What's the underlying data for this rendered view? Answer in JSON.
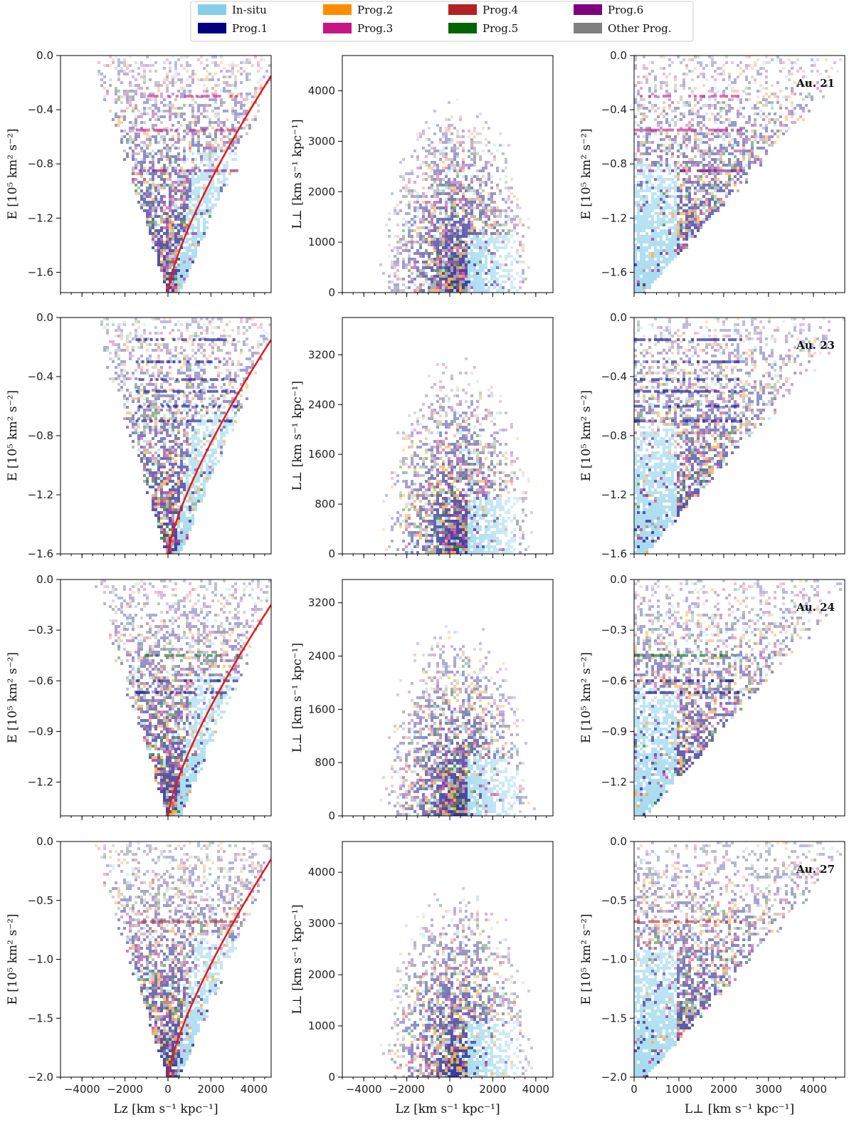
{
  "legend": {
    "entries": [
      {
        "label": "In-situ",
        "color": "#87ceeb"
      },
      {
        "label": "Prog.1",
        "color": "#000080"
      },
      {
        "label": "Prog.2",
        "color": "#ff8c00"
      },
      {
        "label": "Prog.3",
        "color": "#c71585"
      },
      {
        "label": "Prog.4",
        "color": "#b22222"
      },
      {
        "label": "Prog.5",
        "color": "#006400"
      },
      {
        "label": "Prog.6",
        "color": "#800080"
      },
      {
        "label": "Other Prog.",
        "color": "#808080"
      }
    ]
  },
  "axis_labels": {
    "energy": "E [10⁵ km² s⁻²]",
    "lperp": "L⊥ [km s⁻¹ kpc⁻¹]",
    "lz": "Lz [km s⁻¹ kpc⁻¹]"
  },
  "chart_data": {
    "type": "heatmap",
    "title": "",
    "description_series": "2D histograms of halo stars colored by progenitor",
    "halos": [
      {
        "name": "Au. 21",
        "panels": [
          {
            "x": "Lz",
            "y": "E",
            "xlim": [
              -5000,
              4800
            ],
            "ylim": [
              -1.75,
              0.0
            ],
            "xticks": [],
            "yticks": [
              0.0,
              -0.4,
              -0.8,
              -1.2,
              -1.6
            ],
            "circular_curve": true
          },
          {
            "x": "Lz",
            "y": "Lperp",
            "xlim": [
              -5000,
              4800
            ],
            "ylim": [
              0,
              4700
            ],
            "xticks": [],
            "yticks": [
              0,
              1000,
              2000,
              3000,
              4000
            ]
          },
          {
            "x": "Lperp",
            "y": "E",
            "xlim": [
              0,
              4700
            ],
            "ylim": [
              -1.75,
              0.0
            ],
            "xticks": [],
            "yticks": [
              0.0,
              -0.4,
              -0.8,
              -1.2,
              -1.6
            ]
          }
        ],
        "streams": [
          {
            "E": -0.55,
            "prog": "Prog.3"
          },
          {
            "E": -0.3,
            "prog": "Prog.3"
          },
          {
            "E": -0.85,
            "prog": "Prog.6"
          }
        ]
      },
      {
        "name": "Au. 23",
        "panels": [
          {
            "x": "Lz",
            "y": "E",
            "xlim": [
              -5000,
              4800
            ],
            "ylim": [
              -1.6,
              0.0
            ],
            "xticks": [],
            "yticks": [
              0.0,
              -0.4,
              -0.8,
              -1.2,
              -1.6
            ],
            "circular_curve": true
          },
          {
            "x": "Lz",
            "y": "Lperp",
            "xlim": [
              -5000,
              4800
            ],
            "ylim": [
              0,
              3800
            ],
            "xticks": [],
            "yticks": [
              0,
              800,
              1600,
              2400,
              3200
            ]
          },
          {
            "x": "Lperp",
            "y": "E",
            "xlim": [
              0,
              4700
            ],
            "ylim": [
              -1.6,
              0.0
            ],
            "xticks": [],
            "yticks": [
              0.0,
              -0.4,
              -0.8,
              -1.2,
              -1.6
            ]
          }
        ],
        "streams": [
          {
            "E": -0.15,
            "prog": "Prog.1"
          },
          {
            "E": -0.3,
            "prog": "Prog.1"
          },
          {
            "E": -0.42,
            "prog": "Prog.1"
          },
          {
            "E": -0.5,
            "prog": "Prog.1"
          },
          {
            "E": -0.6,
            "prog": "Prog.1"
          },
          {
            "E": -0.7,
            "prog": "Prog.1"
          }
        ]
      },
      {
        "name": "Au. 24",
        "panels": [
          {
            "x": "Lz",
            "y": "E",
            "xlim": [
              -5000,
              4800
            ],
            "ylim": [
              -1.4,
              0.0
            ],
            "xticks": [],
            "yticks": [
              0.0,
              -0.3,
              -0.6,
              -0.9,
              -1.2
            ],
            "circular_curve": true
          },
          {
            "x": "Lz",
            "y": "Lperp",
            "xlim": [
              -5000,
              4800
            ],
            "ylim": [
              0,
              3550
            ],
            "xticks": [],
            "yticks": [
              0,
              800,
              1600,
              2400,
              3200
            ]
          },
          {
            "x": "Lperp",
            "y": "E",
            "xlim": [
              0,
              4700
            ],
            "ylim": [
              -1.4,
              0.0
            ],
            "xticks": [],
            "yticks": [
              0.0,
              -0.3,
              -0.6,
              -0.9,
              -1.2
            ]
          }
        ],
        "streams": [
          {
            "E": -0.45,
            "prog": "Prog.5"
          },
          {
            "E": -0.6,
            "prog": "Prog.1"
          },
          {
            "E": -0.67,
            "prog": "Prog.1"
          }
        ]
      },
      {
        "name": "Au. 27",
        "panels": [
          {
            "x": "Lz",
            "y": "E",
            "xlim": [
              -5000,
              4800
            ],
            "ylim": [
              -2.0,
              0.0
            ],
            "xticks": [
              -4000,
              -2000,
              0,
              2000,
              4000
            ],
            "yticks": [
              0.0,
              -0.5,
              -1.0,
              -1.5,
              -2.0
            ],
            "circular_curve": true
          },
          {
            "x": "Lz",
            "y": "Lperp",
            "xlim": [
              -5000,
              4800
            ],
            "ylim": [
              0,
              4600
            ],
            "xticks": [
              -4000,
              -2000,
              0,
              2000,
              4000
            ],
            "yticks": [
              0,
              1000,
              2000,
              3000,
              4000
            ]
          },
          {
            "x": "Lperp",
            "y": "E",
            "xlim": [
              0,
              4700
            ],
            "ylim": [
              -2.0,
              0.0
            ],
            "xticks": [
              0,
              1000,
              2000,
              3000,
              4000
            ],
            "yticks": [
              0.0,
              -0.5,
              -1.0,
              -1.5,
              -2.0
            ]
          }
        ],
        "streams": [
          {
            "E": -0.68,
            "prog": "Prog.4"
          }
        ]
      }
    ]
  }
}
